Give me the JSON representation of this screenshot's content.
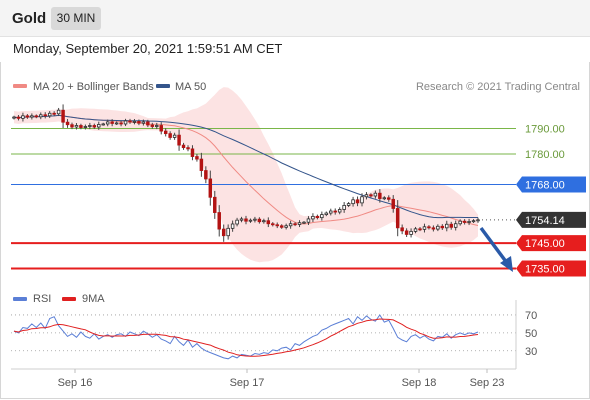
{
  "header": {
    "symbol": "Gold",
    "timeframe": "30 MIN"
  },
  "datetime": "Monday, September 20, 2021 1:59:51 AM CET",
  "legend": {
    "items": [
      {
        "label": "MA 20 + Bollinger Bands",
        "color": "#f08a84"
      },
      {
        "label": "MA 50",
        "color": "#34558b"
      }
    ],
    "credit": "Research © 2021 Trading Central"
  },
  "rsi_legend": {
    "items": [
      {
        "label": "RSI",
        "color": "#5b7fd6"
      },
      {
        "label": "9MA",
        "color": "#e02020"
      }
    ]
  },
  "chart_data": {
    "type": "candlestick",
    "ylim": [
      1730.5,
      1802
    ],
    "x_ticks": [
      "Sep 16",
      "Sep 17",
      "Sep 18",
      "Sep 23"
    ],
    "current_price": 1754.14,
    "levels": [
      {
        "value": 1790.0,
        "label": "1790.00",
        "kind": "target",
        "color": "#7ab648"
      },
      {
        "value": 1780.0,
        "label": "1780.00",
        "kind": "target",
        "color": "#7ab648"
      },
      {
        "value": 1768.0,
        "label": "1768.00",
        "kind": "pivot",
        "color": "#2f6fe0"
      },
      {
        "value": 1745.0,
        "label": "1745.00",
        "kind": "support",
        "color": "#e61e1e"
      },
      {
        "value": 1735.0,
        "label": "1735.00",
        "kind": "support",
        "color": "#e61e1e"
      }
    ],
    "closes": [
      1794.5,
      1794,
      1795,
      1794.5,
      1795,
      1794.6,
      1795.4,
      1795,
      1796,
      1795.8,
      1797.2,
      1792.5,
      1791.5,
      1790.6,
      1791.2,
      1790.4,
      1790.8,
      1791.2,
      1790.6,
      1791.6,
      1791.8,
      1792.6,
      1792,
      1792.2,
      1791.8,
      1793,
      1792.6,
      1792.8,
      1792.1,
      1792.6,
      1791.4,
      1790.8,
      1791.2,
      1789,
      1788,
      1786.5,
      1787.4,
      1783.5,
      1782.5,
      1782,
      1779,
      1778,
      1773.5,
      1770.2,
      1763,
      1757,
      1750.5,
      1747.9,
      1750.8,
      1752.5,
      1754,
      1754.5,
      1753.6,
      1754,
      1754.4,
      1753.4,
      1753.8,
      1752.6,
      1752.2,
      1751.8,
      1751.2,
      1751.8,
      1752.6,
      1752.3,
      1753,
      1753.2,
      1754.5,
      1755.5,
      1755,
      1756.2,
      1756.8,
      1757.6,
      1757.2,
      1758.2,
      1759.8,
      1760.5,
      1762,
      1760.8,
      1763.2,
      1764,
      1763.5,
      1764.6,
      1762.5,
      1762.8,
      1762.2,
      1758.6,
      1751,
      1749.8,
      1748.4,
      1749.6,
      1750.6,
      1750.4,
      1751.4,
      1751,
      1750.5,
      1751.6,
      1751,
      1752.4,
      1751.2,
      1752.6,
      1753.6,
      1753.1,
      1753.5,
      1753.8,
      1754.14
    ],
    "rsi": {
      "levels": [
        70,
        50,
        30
      ],
      "ylim": [
        13,
        80
      ],
      "values": [
        52,
        50,
        56,
        55,
        60,
        56,
        61,
        55,
        66,
        68,
        58,
        52,
        46,
        49,
        45,
        51,
        46,
        44,
        49,
        43,
        46,
        48,
        45,
        48,
        49,
        46,
        51,
        49,
        47,
        52,
        49,
        45,
        48,
        43,
        41,
        38,
        46,
        40,
        36,
        42,
        34,
        38,
        33,
        30,
        28,
        26,
        24,
        22,
        21,
        24,
        22,
        26,
        25,
        24,
        27,
        26,
        28,
        27,
        31,
        30,
        33,
        34,
        31,
        38,
        36,
        40,
        43,
        46,
        48,
        53,
        55,
        58,
        60,
        62,
        64,
        66,
        60,
        68,
        64,
        69,
        65,
        63,
        70,
        62,
        64,
        55,
        45,
        42,
        40,
        46,
        48,
        44,
        47,
        43,
        41,
        46,
        45,
        49,
        44,
        48,
        50,
        48,
        50,
        49,
        51
      ]
    }
  }
}
